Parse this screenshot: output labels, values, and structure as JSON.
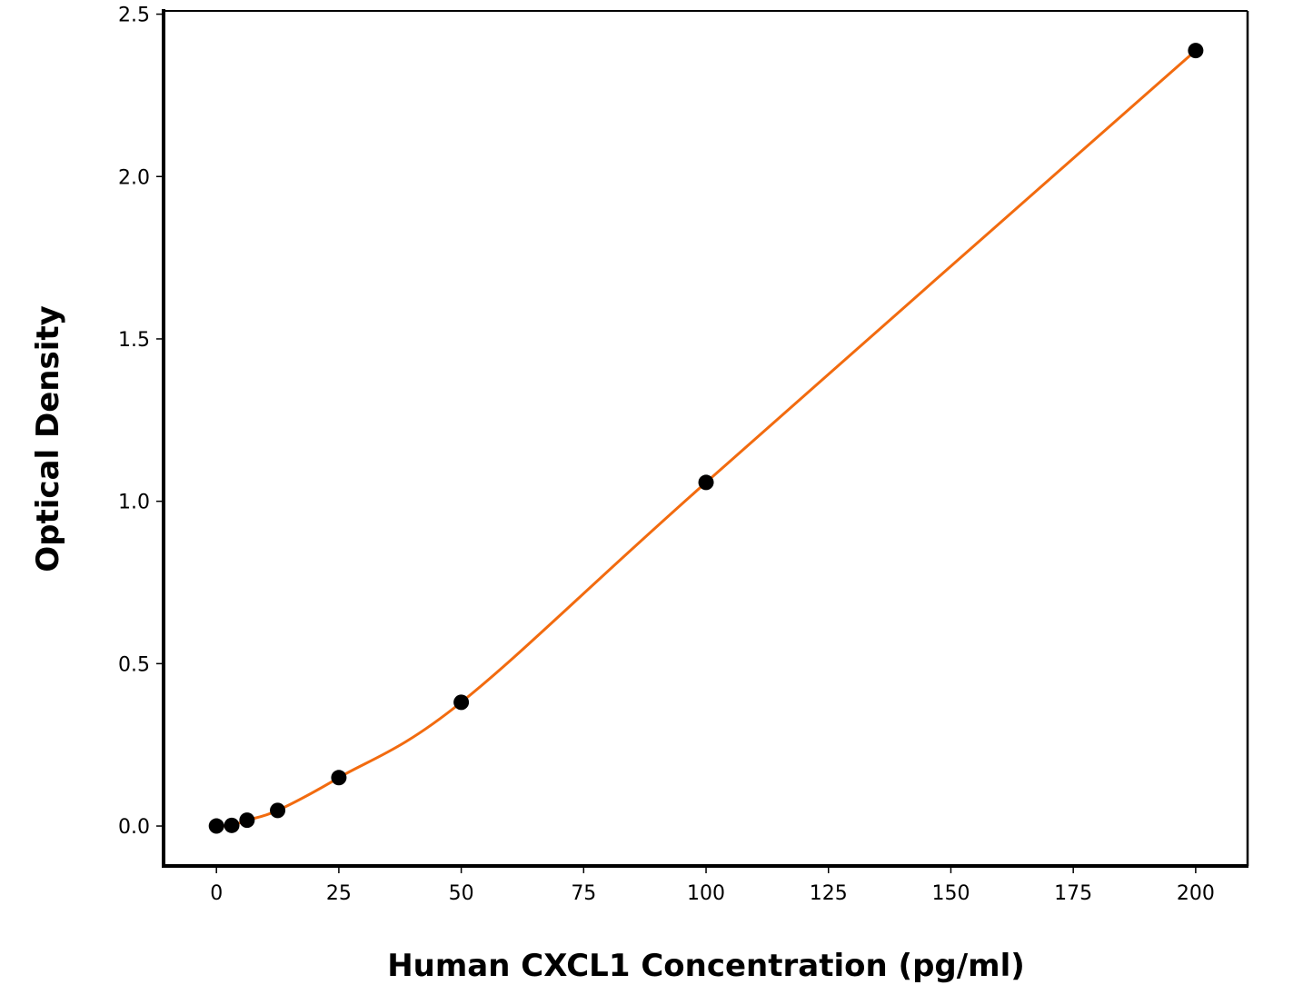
{
  "chart_data": {
    "type": "line",
    "title": "",
    "xlabel": "Human CXCL1 Concentration (pg/ml)",
    "ylabel": "Optical Density",
    "xlim": [
      -10.8,
      210.6
    ],
    "ylim": [
      -0.123,
      2.51
    ],
    "xticks": [
      0,
      25,
      50,
      75,
      100,
      125,
      150,
      175,
      200
    ],
    "xtick_labels": [
      "0",
      "25",
      "50",
      "75",
      "100",
      "125",
      "150",
      "175",
      "200"
    ],
    "yticks": [
      0.0,
      0.5,
      1.0,
      1.5,
      2.0,
      2.5
    ],
    "ytick_labels": [
      "0.0",
      "0.5",
      "1.0",
      "1.5",
      "2.0",
      "2.5"
    ],
    "grid": false,
    "legend": "none",
    "series": [
      {
        "x": [
          0,
          3.125,
          6.25,
          12.5,
          25,
          50,
          100,
          200
        ],
        "y": [
          0.0,
          0.002,
          0.018,
          0.048,
          0.149,
          0.381,
          1.058,
          2.388
        ],
        "marker_color": "#000000",
        "line_color": "#f26b0f"
      }
    ]
  }
}
